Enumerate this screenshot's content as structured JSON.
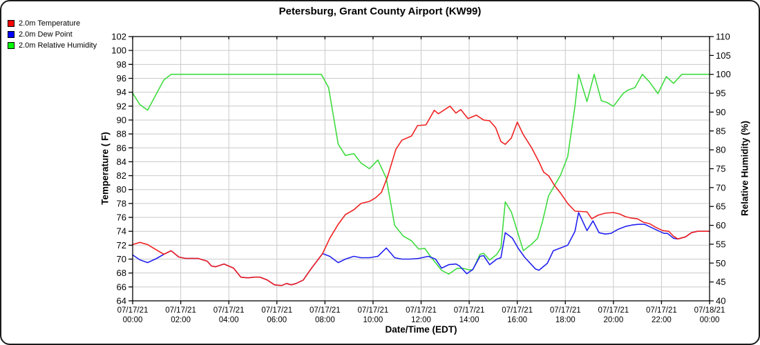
{
  "chart_data": {
    "type": "line",
    "title": "Petersburg, Grant County Airport (KW99)",
    "grid": true,
    "legend_position": "top-left",
    "gridline_color": "#c9c9c9",
    "axis_color": "#000000",
    "x_axis": {
      "label": "Date/Time (EDT)",
      "unit": "hours",
      "range": [
        0,
        24
      ],
      "tick_interval_hours": 2,
      "ticks": [
        {
          "date": "07/17/21",
          "time": "00:00"
        },
        {
          "date": "07/17/21",
          "time": "02:00"
        },
        {
          "date": "07/17/21",
          "time": "04:00"
        },
        {
          "date": "07/17/21",
          "time": "06:00"
        },
        {
          "date": "07/17/21",
          "time": "08:00"
        },
        {
          "date": "07/17/21",
          "time": "10:00"
        },
        {
          "date": "07/17/21",
          "time": "12:00"
        },
        {
          "date": "07/17/21",
          "time": "14:00"
        },
        {
          "date": "07/17/21",
          "time": "16:00"
        },
        {
          "date": "07/17/21",
          "time": "18:00"
        },
        {
          "date": "07/17/21",
          "time": "20:00"
        },
        {
          "date": "07/17/21",
          "time": "22:00"
        },
        {
          "date": "07/18/21",
          "time": "00:00"
        }
      ]
    },
    "left_axis": {
      "label": "Temperature ( F)",
      "range": [
        64,
        102
      ],
      "tick_step": 2,
      "tick_labels": [
        102,
        100,
        98,
        96,
        94,
        92,
        90,
        88,
        86,
        84,
        82,
        80,
        78,
        76,
        74,
        72,
        70,
        68,
        66,
        64
      ]
    },
    "right_axis": {
      "label": "Relative Humidity (%)",
      "range": [
        40,
        110
      ],
      "tick_step": 5,
      "tick_labels": [
        110,
        105,
        100,
        95,
        90,
        85,
        80,
        75,
        70,
        65,
        60,
        55,
        50,
        45,
        40
      ]
    },
    "series": [
      {
        "name": "2.0m Temperature",
        "legend_color": "#ff0000",
        "color": "#f02020",
        "axis": "left",
        "points": [
          [
            0,
            72.1
          ],
          [
            0.3,
            72.4
          ],
          [
            0.62,
            72.1
          ],
          [
            1.0,
            71.3
          ],
          [
            1.3,
            70.7
          ],
          [
            1.6,
            71.2
          ],
          [
            1.92,
            70.3
          ],
          [
            2.2,
            70.1
          ],
          [
            2.72,
            70.1
          ],
          [
            3.1,
            69.7
          ],
          [
            3.28,
            69.0
          ],
          [
            3.45,
            68.9
          ],
          [
            3.8,
            69.3
          ],
          [
            4.2,
            68.7
          ],
          [
            4.5,
            67.4
          ],
          [
            4.8,
            67.3
          ],
          [
            5.05,
            67.4
          ],
          [
            5.3,
            67.4
          ],
          [
            5.6,
            67.0
          ],
          [
            5.9,
            66.3
          ],
          [
            6.2,
            66.2
          ],
          [
            6.4,
            66.5
          ],
          [
            6.6,
            66.3
          ],
          [
            6.8,
            66.5
          ],
          [
            7.1,
            67.0
          ],
          [
            7.4,
            68.5
          ],
          [
            7.9,
            70.8
          ],
          [
            8.2,
            73.0
          ],
          [
            8.55,
            75.0
          ],
          [
            8.85,
            76.4
          ],
          [
            9.2,
            77.1
          ],
          [
            9.5,
            78.0
          ],
          [
            9.85,
            78.3
          ],
          [
            10.1,
            78.8
          ],
          [
            10.35,
            79.6
          ],
          [
            10.6,
            81.8
          ],
          [
            10.95,
            85.8
          ],
          [
            11.2,
            87.1
          ],
          [
            11.6,
            87.7
          ],
          [
            11.85,
            89.2
          ],
          [
            12.2,
            89.3
          ],
          [
            12.55,
            91.4
          ],
          [
            12.72,
            90.9
          ],
          [
            13.2,
            92.0
          ],
          [
            13.45,
            91.0
          ],
          [
            13.65,
            91.5
          ],
          [
            13.95,
            90.2
          ],
          [
            14.3,
            90.7
          ],
          [
            14.6,
            90.0
          ],
          [
            14.85,
            89.9
          ],
          [
            15.1,
            88.9
          ],
          [
            15.32,
            86.9
          ],
          [
            15.5,
            86.5
          ],
          [
            15.75,
            87.4
          ],
          [
            16.0,
            89.7
          ],
          [
            16.25,
            87.9
          ],
          [
            16.6,
            86.0
          ],
          [
            16.9,
            84.0
          ],
          [
            17.1,
            82.5
          ],
          [
            17.3,
            82.0
          ],
          [
            17.55,
            80.6
          ],
          [
            17.8,
            79.5
          ],
          [
            18.1,
            78.0
          ],
          [
            18.4,
            76.9
          ],
          [
            18.9,
            76.8
          ],
          [
            19.1,
            75.8
          ],
          [
            19.35,
            76.3
          ],
          [
            19.65,
            76.6
          ],
          [
            20.0,
            76.7
          ],
          [
            20.25,
            76.5
          ],
          [
            20.5,
            76.1
          ],
          [
            20.75,
            75.9
          ],
          [
            21.0,
            75.8
          ],
          [
            21.25,
            75.3
          ],
          [
            21.5,
            75.1
          ],
          [
            21.75,
            74.6
          ],
          [
            22.05,
            74.1
          ],
          [
            22.3,
            74.0
          ],
          [
            22.5,
            73.3
          ],
          [
            22.68,
            72.9
          ],
          [
            23.0,
            73.2
          ],
          [
            23.25,
            73.8
          ],
          [
            23.5,
            74.0
          ],
          [
            24,
            74.0
          ]
        ]
      },
      {
        "name": "2.0m Dew Point",
        "legend_color": "#0000ff",
        "color": "#2020f0",
        "axis": "left",
        "points": [
          [
            0,
            70.6
          ],
          [
            0.3,
            69.9
          ],
          [
            0.62,
            69.5
          ],
          [
            1.0,
            70.1
          ],
          [
            1.3,
            70.7
          ],
          [
            1.6,
            71.2
          ],
          [
            1.92,
            70.3
          ],
          [
            2.2,
            70.1
          ],
          [
            2.72,
            70.1
          ],
          [
            3.1,
            69.7
          ],
          [
            3.28,
            69.0
          ],
          [
            3.45,
            68.9
          ],
          [
            3.8,
            69.3
          ],
          [
            4.2,
            68.7
          ],
          [
            4.5,
            67.4
          ],
          [
            4.8,
            67.3
          ],
          [
            5.05,
            67.4
          ],
          [
            5.3,
            67.4
          ],
          [
            5.6,
            67.0
          ],
          [
            5.9,
            66.3
          ],
          [
            6.2,
            66.2
          ],
          [
            6.4,
            66.5
          ],
          [
            6.6,
            66.3
          ],
          [
            6.8,
            66.5
          ],
          [
            7.1,
            67.0
          ],
          [
            7.4,
            68.5
          ],
          [
            7.9,
            70.8
          ],
          [
            8.2,
            70.4
          ],
          [
            8.55,
            69.5
          ],
          [
            8.85,
            70.0
          ],
          [
            9.2,
            70.4
          ],
          [
            9.5,
            70.2
          ],
          [
            9.85,
            70.2
          ],
          [
            10.2,
            70.4
          ],
          [
            10.55,
            71.6
          ],
          [
            10.9,
            70.2
          ],
          [
            11.2,
            70.0
          ],
          [
            11.55,
            70.0
          ],
          [
            11.9,
            70.1
          ],
          [
            12.3,
            70.4
          ],
          [
            12.6,
            70.0
          ],
          [
            12.85,
            68.7
          ],
          [
            13.15,
            69.2
          ],
          [
            13.45,
            69.3
          ],
          [
            13.6,
            69.0
          ],
          [
            13.9,
            67.9
          ],
          [
            14.15,
            68.5
          ],
          [
            14.45,
            70.4
          ],
          [
            14.6,
            70.5
          ],
          [
            14.85,
            69.2
          ],
          [
            15.15,
            70.0
          ],
          [
            15.32,
            70.2
          ],
          [
            15.5,
            73.8
          ],
          [
            15.8,
            73.0
          ],
          [
            16.05,
            71.5
          ],
          [
            16.3,
            70.3
          ],
          [
            16.75,
            68.6
          ],
          [
            16.9,
            68.4
          ],
          [
            17.25,
            69.4
          ],
          [
            17.5,
            71.2
          ],
          [
            17.8,
            71.6
          ],
          [
            18.1,
            72.0
          ],
          [
            18.4,
            74.0
          ],
          [
            18.55,
            76.7
          ],
          [
            18.9,
            74.1
          ],
          [
            19.15,
            75.5
          ],
          [
            19.4,
            73.8
          ],
          [
            19.65,
            73.6
          ],
          [
            19.9,
            73.7
          ],
          [
            20.2,
            74.3
          ],
          [
            20.5,
            74.7
          ],
          [
            20.78,
            74.9
          ],
          [
            21.05,
            75.0
          ],
          [
            21.3,
            75.0
          ],
          [
            21.55,
            74.6
          ],
          [
            21.85,
            74.1
          ],
          [
            22.1,
            73.7
          ],
          [
            22.25,
            73.7
          ],
          [
            22.5,
            73.0
          ],
          [
            22.68,
            72.9
          ],
          [
            23.0,
            73.2
          ],
          [
            23.25,
            73.8
          ],
          [
            23.5,
            74.0
          ],
          [
            24,
            74.0
          ]
        ]
      },
      {
        "name": "2.0m Relative Humidity",
        "legend_color": "#00ff00",
        "color": "#3ddc3d",
        "axis": "right",
        "points": [
          [
            0,
            95.0
          ],
          [
            0.3,
            92.0
          ],
          [
            0.62,
            90.5
          ],
          [
            1.0,
            95.0
          ],
          [
            1.3,
            98.5
          ],
          [
            1.6,
            100
          ],
          [
            3,
            100
          ],
          [
            5,
            100
          ],
          [
            7,
            100
          ],
          [
            7.85,
            100
          ],
          [
            8.15,
            96.5
          ],
          [
            8.55,
            81.5
          ],
          [
            8.85,
            78.5
          ],
          [
            9.2,
            79.0
          ],
          [
            9.5,
            76.5
          ],
          [
            9.85,
            75.0
          ],
          [
            10.2,
            77.3
          ],
          [
            10.55,
            72.5
          ],
          [
            10.9,
            60.0
          ],
          [
            11.25,
            57.2
          ],
          [
            11.6,
            55.9
          ],
          [
            11.9,
            53.7
          ],
          [
            12.15,
            53.9
          ],
          [
            12.4,
            51.7
          ],
          [
            12.85,
            48.1
          ],
          [
            13.15,
            47.1
          ],
          [
            13.5,
            48.6
          ],
          [
            13.75,
            48.6
          ],
          [
            14.0,
            48.2
          ],
          [
            14.15,
            48.2
          ],
          [
            14.45,
            52.3
          ],
          [
            14.6,
            52.6
          ],
          [
            14.85,
            50.8
          ],
          [
            15.15,
            52.3
          ],
          [
            15.32,
            54.1
          ],
          [
            15.5,
            66.2
          ],
          [
            15.75,
            63.6
          ],
          [
            16.25,
            53.3
          ],
          [
            16.6,
            55.0
          ],
          [
            16.85,
            56.6
          ],
          [
            17.05,
            61.0
          ],
          [
            17.3,
            67.8
          ],
          [
            17.8,
            73.3
          ],
          [
            18.1,
            78.2
          ],
          [
            18.4,
            91.6
          ],
          [
            18.55,
            100
          ],
          [
            18.9,
            92.8
          ],
          [
            19.2,
            100
          ],
          [
            19.5,
            93.0
          ],
          [
            19.75,
            92.5
          ],
          [
            20.0,
            91.5
          ],
          [
            20.4,
            94.9
          ],
          [
            20.6,
            95.8
          ],
          [
            20.9,
            96.5
          ],
          [
            21.2,
            100
          ],
          [
            21.5,
            98.0
          ],
          [
            21.85,
            94.9
          ],
          [
            22.2,
            99.4
          ],
          [
            22.5,
            97.6
          ],
          [
            22.85,
            100
          ],
          [
            23.4,
            100
          ],
          [
            24,
            100
          ]
        ]
      }
    ]
  }
}
